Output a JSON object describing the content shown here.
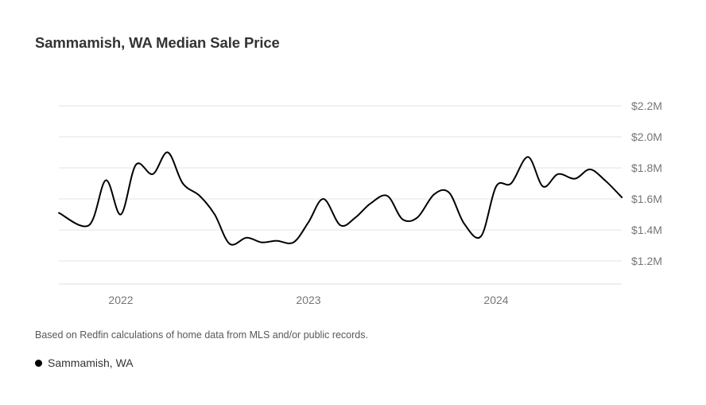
{
  "title": "Sammamish, WA Median Sale Price",
  "source_note": "Based on Redfin calculations of home data from MLS and/or public records.",
  "legend": {
    "label": "Sammamish, WA",
    "color": "#000000"
  },
  "chart_data": {
    "type": "line",
    "title": "Sammamish, WA Median Sale Price",
    "xlabel": "",
    "ylabel": "",
    "y_axis_side": "right",
    "ylim": [
      1.05,
      2.2
    ],
    "y_ticks": [
      1.2,
      1.4,
      1.6,
      1.8,
      2.0,
      2.2
    ],
    "y_tick_labels": [
      "$1.2M",
      "$1.4M",
      "$1.6M",
      "$1.8M",
      "$2.0M",
      "$2.2M"
    ],
    "x_ticks": [
      2022,
      2023,
      2024
    ],
    "x_tick_labels": [
      "2022",
      "2023",
      "2024"
    ],
    "xlim": [
      2021.67,
      2024.67
    ],
    "grid": true,
    "series": [
      {
        "name": "Sammamish, WA",
        "color": "#000000",
        "x": [
          2021.67,
          2021.83,
          2021.92,
          2022.0,
          2022.08,
          2022.17,
          2022.25,
          2022.33,
          2022.42,
          2022.5,
          2022.58,
          2022.67,
          2022.75,
          2022.83,
          2022.92,
          2023.0,
          2023.08,
          2023.17,
          2023.25,
          2023.33,
          2023.42,
          2023.5,
          2023.58,
          2023.67,
          2023.75,
          2023.83,
          2023.92,
          2024.0,
          2024.08,
          2024.17,
          2024.25,
          2024.33,
          2024.42,
          2024.5,
          2024.58,
          2024.67
        ],
        "values": [
          1.51,
          1.43,
          1.72,
          1.5,
          1.82,
          1.76,
          1.9,
          1.7,
          1.62,
          1.5,
          1.31,
          1.35,
          1.32,
          1.33,
          1.32,
          1.45,
          1.6,
          1.43,
          1.48,
          1.57,
          1.62,
          1.47,
          1.48,
          1.63,
          1.64,
          1.44,
          1.36,
          1.68,
          1.7,
          1.87,
          1.68,
          1.76,
          1.73,
          1.79,
          1.72,
          1.61
        ]
      }
    ]
  }
}
